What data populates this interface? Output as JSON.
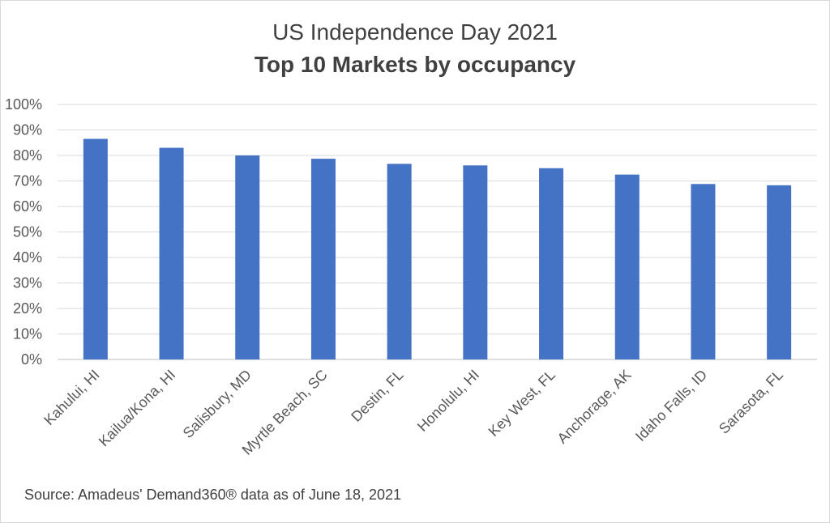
{
  "chart_data": {
    "type": "bar",
    "title": "US Independence Day 2021",
    "subtitle": "Top 10 Markets by occupancy",
    "xlabel": "",
    "ylabel": "",
    "ylim": [
      0,
      100
    ],
    "y_ticks": [
      "0%",
      "10%",
      "20%",
      "30%",
      "40%",
      "50%",
      "60%",
      "70%",
      "80%",
      "90%",
      "100%"
    ],
    "grid": true,
    "legend": "none",
    "categories": [
      "Kahului, HI",
      "Kailua/Kona, HI",
      "Salisbury, MD",
      "Myrtle Beach, SC",
      "Destin, FL",
      "Honolulu, HI",
      "Key West, FL",
      "Anchorage, AK",
      "Idaho Falls, ID",
      "Sarasota, FL"
    ],
    "values": [
      86.5,
      83,
      80,
      78.7,
      76.7,
      76.1,
      75,
      72.5,
      68.8,
      68.3
    ],
    "bar_color": "#4472C4"
  },
  "source": "Source: Amadeus' Demand360® data as of June 18, 2021"
}
